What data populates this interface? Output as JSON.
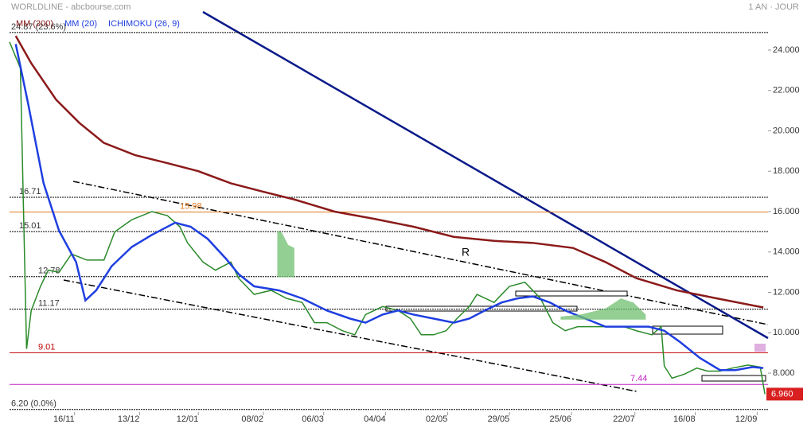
{
  "chart_data": {
    "type": "line",
    "title": "WORLDLINE - abcbourse.com",
    "period": "1 AN · JOUR",
    "xlim": [
      0,
      49
    ],
    "ylim": [
      6.07,
      26.48
    ],
    "xticks": [
      {
        "value": 4.2,
        "label": "16/11"
      },
      {
        "value": 8.4,
        "label": "13/12"
      },
      {
        "value": 12.2,
        "label": "12/01"
      },
      {
        "value": 16.4,
        "label": "08/02"
      },
      {
        "value": 20.3,
        "label": "06/03"
      },
      {
        "value": 24.3,
        "label": "04/04"
      },
      {
        "value": 28.3,
        "label": "02/05"
      },
      {
        "value": 32.3,
        "label": "29/05"
      },
      {
        "value": 36.3,
        "label": "25/06"
      },
      {
        "value": 40.4,
        "label": "22/07"
      },
      {
        "value": 44.3,
        "label": "16/08"
      },
      {
        "value": 48.3,
        "label": "12/09"
      }
    ],
    "yticks": [
      {
        "value": 8,
        "label": "8.000"
      },
      {
        "value": 10,
        "label": "10.000"
      },
      {
        "value": 12,
        "label": "12.000"
      },
      {
        "value": 14,
        "label": "14.000"
      },
      {
        "value": 16,
        "label": "16.000"
      },
      {
        "value": 18,
        "label": "18.000"
      },
      {
        "value": 20,
        "label": "20.000"
      },
      {
        "value": 22,
        "label": "22.000"
      },
      {
        "value": 24,
        "label": "24.000"
      }
    ],
    "series": [
      {
        "color": "#2a8a2a",
        "x": [
          0.0,
          0.7,
          1.1,
          1.4,
          2.0,
          2.5,
          3.2,
          4.0,
          5.0,
          6.1,
          6.8,
          7.9,
          9.2,
          10.2,
          11.0,
          11.5,
          12.5,
          13.3,
          14.3,
          14.8,
          15.8,
          16.9,
          17.9,
          18.9,
          19.7,
          20.5,
          21.5,
          22.3,
          23.0,
          24.1,
          25.1,
          25.9,
          26.6,
          27.4,
          28.2,
          28.9,
          29.7,
          30.2,
          31.3,
          32.3,
          33.3,
          34.3,
          35.1,
          35.9,
          36.7,
          37.7,
          38.7,
          39.7,
          40.5,
          41.5,
          42.1,
          42.3,
          42.8,
          43.6,
          44.4,
          45.1,
          45.9,
          46.7,
          47.7,
          48.5,
          48.8
        ],
        "values": [
          24.4,
          23.1,
          9.2,
          11.1,
          12.3,
          13.1,
          13.0,
          13.9,
          13.6,
          13.6,
          15.0,
          15.6,
          16.0,
          15.8,
          15.25,
          14.45,
          13.5,
          13.1,
          13.5,
          12.7,
          11.9,
          12.1,
          11.7,
          11.5,
          10.5,
          10.5,
          10.1,
          9.9,
          10.9,
          11.3,
          11.1,
          10.7,
          9.9,
          9.9,
          10.1,
          10.7,
          11.3,
          11.9,
          11.5,
          12.3,
          12.5,
          11.7,
          10.5,
          10.1,
          10.3,
          10.3,
          10.3,
          10.3,
          10.1,
          9.9,
          10.3,
          8.35,
          7.75,
          7.95,
          8.25,
          8.1,
          8.1,
          8.25,
          8.4,
          8.3,
          6.96
        ]
      },
      {
        "name": "MM (200)",
        "color": "#8b1a1a",
        "x": [
          0.4,
          1.4,
          3.0,
          4.5,
          6.1,
          8.1,
          10.2,
          12.2,
          14.3,
          16.3,
          18.4,
          21.0,
          23.5,
          26.1,
          28.7,
          31.3,
          33.8,
          36.4,
          38.5,
          40.5,
          43.1,
          45.7,
          48.7
        ],
        "values": [
          24.7,
          23.35,
          21.55,
          20.4,
          19.4,
          18.8,
          18.4,
          18.0,
          17.4,
          17.0,
          16.6,
          16.0,
          15.65,
          15.25,
          14.75,
          14.55,
          14.45,
          14.2,
          13.5,
          12.7,
          12.1,
          11.7,
          11.25
        ]
      },
      {
        "name": "MM (20)",
        "color": "#1f3fe0",
        "x": [
          0.4,
          1.2,
          2.2,
          3.2,
          4.3,
          4.9,
          5.6,
          6.6,
          7.9,
          9.2,
          10.7,
          11.7,
          12.8,
          14.0,
          14.8,
          15.8,
          17.4,
          18.9,
          20.5,
          22.0,
          23.0,
          24.1,
          25.1,
          26.1,
          27.4,
          28.7,
          29.7,
          30.7,
          31.8,
          32.8,
          33.8,
          34.9,
          35.9,
          37.2,
          38.5,
          40.0,
          41.3,
          42.3,
          43.3,
          44.6,
          45.9,
          46.9,
          48.0,
          48.7
        ],
        "values": [
          24.3,
          21.35,
          17.4,
          15.05,
          13.5,
          11.6,
          12.1,
          13.3,
          14.25,
          14.85,
          15.45,
          15.25,
          14.65,
          13.65,
          12.9,
          12.3,
          12.1,
          11.7,
          11.1,
          10.7,
          10.5,
          10.9,
          11.1,
          10.9,
          10.7,
          10.5,
          10.7,
          11.1,
          11.5,
          11.7,
          11.8,
          11.5,
          11.1,
          10.7,
          10.3,
          10.3,
          10.3,
          10.1,
          9.55,
          8.75,
          8.15,
          8.15,
          8.3,
          8.25
        ]
      },
      {
        "name": "ICHIMOKU (26, 9)",
        "color": "#1f3fe0",
        "fill": "#6fbf6f",
        "x": [
          17.3,
          17.6,
          18.0,
          18.4,
          null,
          35.6,
          36.9,
          38.5,
          39.5,
          40.3,
          41.1
        ],
        "upper": [
          15.05,
          14.95,
          14.35,
          14.2,
          null,
          10.8,
          10.9,
          11.2,
          11.7,
          11.5,
          10.9
        ],
        "lower": [
          12.75,
          12.75,
          12.75,
          12.75,
          null,
          10.65,
          10.65,
          10.65,
          10.65,
          10.65,
          10.65
        ]
      }
    ],
    "levels": [
      {
        "value": 24.87,
        "label": "24.87 (23.6%)",
        "color": "#000000"
      },
      {
        "value": 16.71,
        "color": "#000000"
      },
      {
        "value": 15.98,
        "color": "#e07a20"
      },
      {
        "value": 15.01,
        "color": "#000000"
      },
      {
        "value": 12.78,
        "color": "#000000"
      },
      {
        "value": 11.17,
        "color": "#000000"
      },
      {
        "value": 9.01,
        "color": "#c00000"
      },
      {
        "value": 7.44,
        "color": "#c020c0"
      },
      {
        "value": 6.2,
        "label": "6.20 (0.0%)",
        "color": "#000000"
      }
    ],
    "annotation": "R",
    "last": {
      "value": 6.96,
      "label": "6.960",
      "color": "#d92020"
    }
  }
}
